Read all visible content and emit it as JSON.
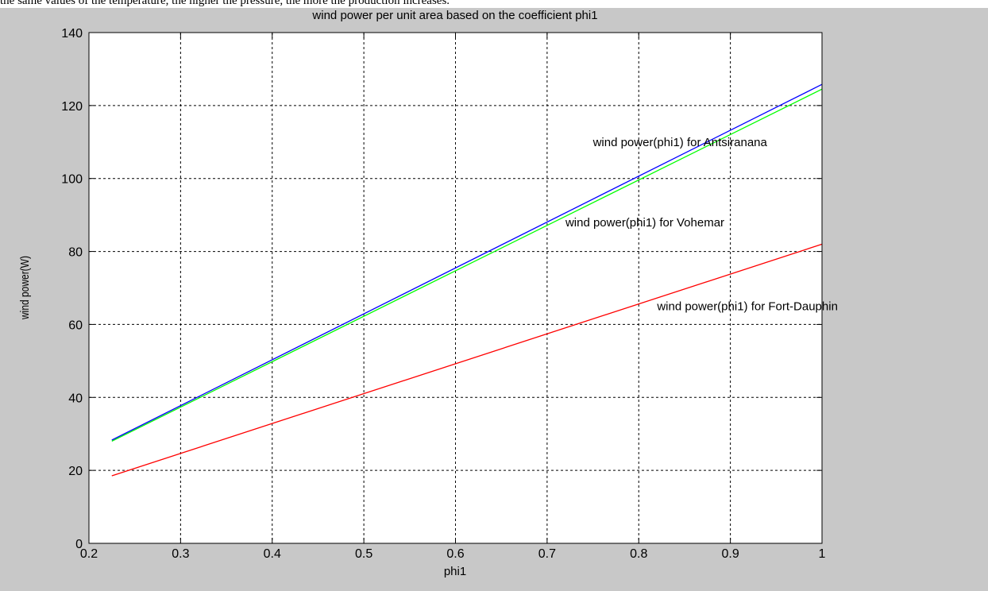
{
  "caption_fragment": "the same values of the temperature, the higher the pressure, the more the production increases.",
  "chart_data": {
    "type": "line",
    "title": "wind power per unit area based on the coefficient phi1",
    "xlabel": "phi1",
    "ylabel": "wind power(W)",
    "xlim": [
      0.2,
      1
    ],
    "ylim": [
      0,
      140
    ],
    "xticks": [
      0.2,
      0.3,
      0.4,
      0.5,
      0.6,
      0.7,
      0.8,
      0.9,
      1
    ],
    "xtick_labels": [
      "0.2",
      "0.3",
      "0.4",
      "0.5",
      "0.6",
      "0.7",
      "0.8",
      "0.9",
      "1"
    ],
    "yticks": [
      0,
      20,
      40,
      60,
      80,
      100,
      120,
      140
    ],
    "ytick_labels": [
      "0",
      "20",
      "40",
      "60",
      "80",
      "100",
      "120",
      "140"
    ],
    "grid": true,
    "series": [
      {
        "name": "wind power(phi1) for Antsiranana",
        "color": "#0000ff",
        "x": [
          0.225,
          1.0
        ],
        "y": [
          28.3,
          125.8
        ]
      },
      {
        "name": "wind power(phi1) for Vohemar",
        "color": "#00ff00",
        "x": [
          0.225,
          1.0
        ],
        "y": [
          28.0,
          124.5
        ]
      },
      {
        "name": "wind power(phi1) for Fort-Dauphin",
        "color": "#ff0000",
        "x": [
          0.225,
          1.0
        ],
        "y": [
          18.5,
          82.0
        ]
      }
    ],
    "annotations": [
      {
        "text": "wind power(phi1) for Antsiranana",
        "x": 0.75,
        "y": 110
      },
      {
        "text": "wind power(phi1) for Vohemar",
        "x": 0.72,
        "y": 88
      },
      {
        "text": "wind power(phi1) for Fort-Dauphin",
        "x": 0.82,
        "y": 65
      }
    ]
  }
}
